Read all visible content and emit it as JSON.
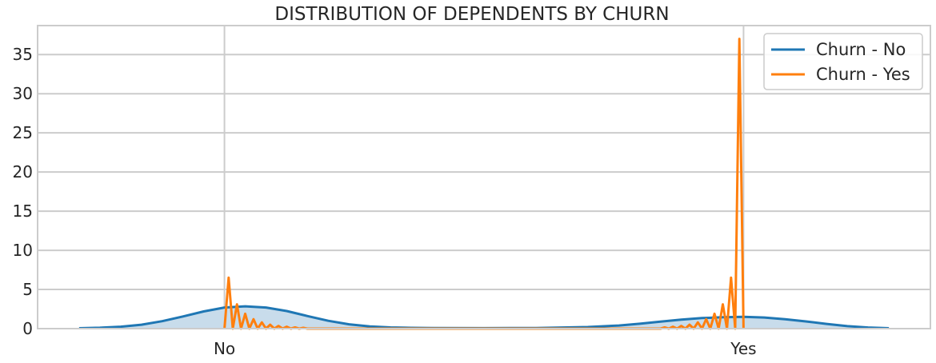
{
  "chart_data": {
    "type": "area",
    "title": "DISTRIBUTION OF DEPENDENTS BY CHURN",
    "xlabel": "",
    "ylabel": "",
    "categories": [
      "No",
      "Yes"
    ],
    "x_range": [
      -0.36,
      1.36
    ],
    "ylim": [
      0,
      38.7
    ],
    "yticks": [
      "0",
      "5",
      "10",
      "15",
      "20",
      "25",
      "30",
      "35"
    ],
    "grid": true,
    "legend_position": "top-right",
    "series": [
      {
        "name": "Churn - No",
        "color": "#1f77b4",
        "fill": "#c5daea",
        "kind": "kde",
        "x": [
          -0.28,
          -0.24,
          -0.2,
          -0.16,
          -0.12,
          -0.08,
          -0.04,
          0,
          0.04,
          0.08,
          0.12,
          0.16,
          0.2,
          0.24,
          0.28,
          0.32,
          0.36,
          0.4,
          0.5,
          0.6,
          0.7,
          0.76,
          0.8,
          0.84,
          0.88,
          0.92,
          0.96,
          1,
          1.04,
          1.08,
          1.12,
          1.16,
          1.2,
          1.24,
          1.28
        ],
        "y": [
          0.05,
          0.11,
          0.25,
          0.5,
          0.95,
          1.55,
          2.2,
          2.7,
          2.85,
          2.7,
          2.25,
          1.6,
          1.0,
          0.55,
          0.28,
          0.15,
          0.1,
          0.07,
          0.06,
          0.08,
          0.2,
          0.4,
          0.62,
          0.9,
          1.15,
          1.35,
          1.45,
          1.5,
          1.42,
          1.2,
          0.92,
          0.6,
          0.32,
          0.14,
          0.05
        ]
      },
      {
        "name": "Churn - Yes",
        "color": "#ff7f0e",
        "kind": "line",
        "x": [
          0,
          0.008,
          0.016,
          0.024,
          0.032,
          0.04,
          0.048,
          0.056,
          0.064,
          0.072,
          0.08,
          0.088,
          0.096,
          0.104,
          0.112,
          0.12,
          0.128,
          0.136,
          0.144,
          0.152,
          0.16,
          0.2,
          0.3,
          0.4,
          0.5,
          0.6,
          0.7,
          0.8,
          0.84,
          0.848,
          0.856,
          0.864,
          0.872,
          0.88,
          0.888,
          0.896,
          0.904,
          0.912,
          0.92,
          0.928,
          0.936,
          0.944,
          0.952,
          0.96,
          0.968,
          0.976,
          0.984,
          0.992,
          1
        ],
        "y": [
          0,
          6.5,
          0,
          3.1,
          0,
          1.9,
          0,
          1.2,
          0,
          0.8,
          0,
          0.5,
          0,
          0.35,
          0,
          0.25,
          0,
          0.15,
          0,
          0.1,
          0,
          0,
          0,
          0,
          0,
          0,
          0,
          0,
          0,
          0.15,
          0,
          0.25,
          0,
          0.35,
          0,
          0.5,
          0,
          0.8,
          0,
          1.2,
          0,
          1.9,
          0,
          3.1,
          0,
          6.5,
          0,
          37,
          0
        ]
      }
    ]
  }
}
